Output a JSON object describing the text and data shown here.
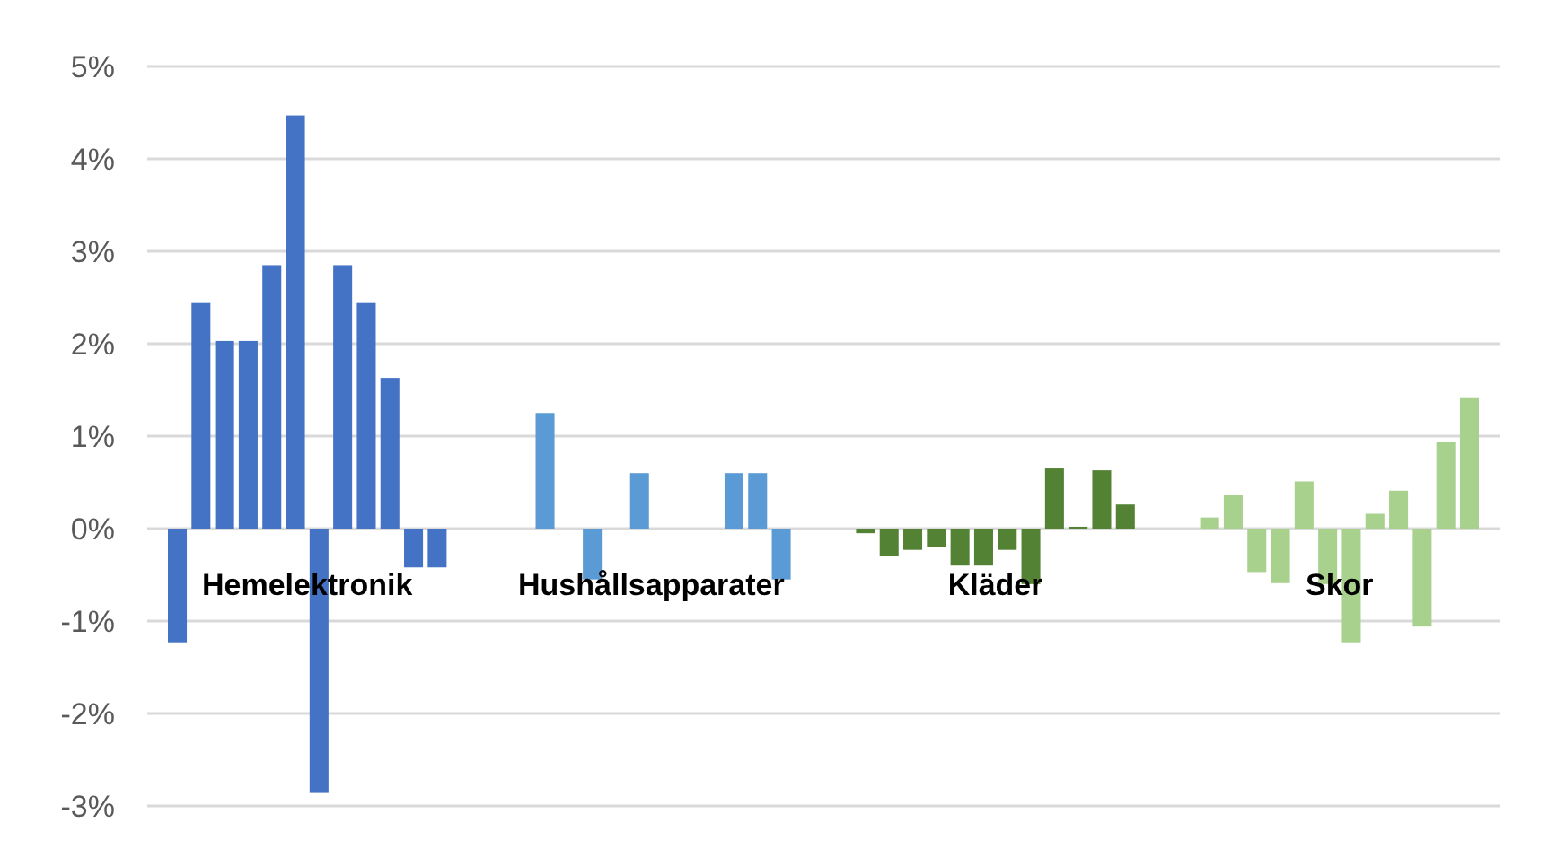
{
  "chart_data": {
    "type": "bar",
    "categories": [
      "Hemelektronik",
      "Hushållsapparater",
      "Kläder",
      "Skor"
    ],
    "series": [
      {
        "colors": [
          "#4472c4",
          "#5b9bd5",
          "#548235",
          "#a9d18e"
        ],
        "values": [
          -1.23,
          0,
          -0.05,
          0.12
        ]
      },
      {
        "colors": [
          "#4472c4",
          "#5b9bd5",
          "#548235",
          "#a9d18e"
        ],
        "values": [
          2.44,
          1.25,
          -0.3,
          0.36
        ]
      },
      {
        "colors": [
          "#4472c4",
          "#5b9bd5",
          "#548235",
          "#a9d18e"
        ],
        "values": [
          2.03,
          0,
          -0.23,
          -0.47
        ]
      },
      {
        "colors": [
          "#4472c4",
          "#5b9bd5",
          "#548235",
          "#a9d18e"
        ],
        "values": [
          2.03,
          -0.55,
          -0.2,
          -0.59
        ]
      },
      {
        "colors": [
          "#4472c4",
          "#5b9bd5",
          "#548235",
          "#a9d18e"
        ],
        "values": [
          2.85,
          0,
          -0.4,
          0.51
        ]
      },
      {
        "colors": [
          "#4472c4",
          "#5b9bd5",
          "#548235",
          "#a9d18e"
        ],
        "values": [
          4.47,
          0.6,
          -0.4,
          -0.6
        ]
      },
      {
        "colors": [
          "#4472c4",
          "#5b9bd5",
          "#548235",
          "#a9d18e"
        ],
        "values": [
          -2.86,
          0,
          -0.23,
          -1.23
        ]
      },
      {
        "colors": [
          "#4472c4",
          "#5b9bd5",
          "#548235",
          "#a9d18e"
        ],
        "values": [
          2.85,
          0,
          -0.6,
          0.16
        ]
      },
      {
        "colors": [
          "#4472c4",
          "#5b9bd5",
          "#548235",
          "#a9d18e"
        ],
        "values": [
          2.44,
          0,
          0.65,
          0.41
        ]
      },
      {
        "colors": [
          "#4472c4",
          "#5b9bd5",
          "#548235",
          "#a9d18e"
        ],
        "values": [
          1.63,
          0.6,
          0.02,
          -1.06
        ]
      },
      {
        "colors": [
          "#4472c4",
          "#5b9bd5",
          "#548235",
          "#a9d18e"
        ],
        "values": [
          -0.42,
          0.6,
          0.63,
          0.94
        ]
      },
      {
        "colors": [
          "#4472c4",
          "#5b9bd5",
          "#548235",
          "#a9d18e"
        ],
        "values": [
          -0.42,
          -0.55,
          0.26,
          1.42
        ]
      }
    ],
    "ylim": [
      -3,
      5
    ],
    "yticks": [
      {
        "value": -3,
        "label": "-3%"
      },
      {
        "value": -2,
        "label": "-2%"
      },
      {
        "value": -1,
        "label": "-1%"
      },
      {
        "value": 0,
        "label": "0%"
      },
      {
        "value": 1,
        "label": "1%"
      },
      {
        "value": 2,
        "label": "2%"
      },
      {
        "value": 3,
        "label": "3%"
      },
      {
        "value": 4,
        "label": "4%"
      },
      {
        "value": 5,
        "label": "5%"
      }
    ],
    "grid": "y"
  }
}
